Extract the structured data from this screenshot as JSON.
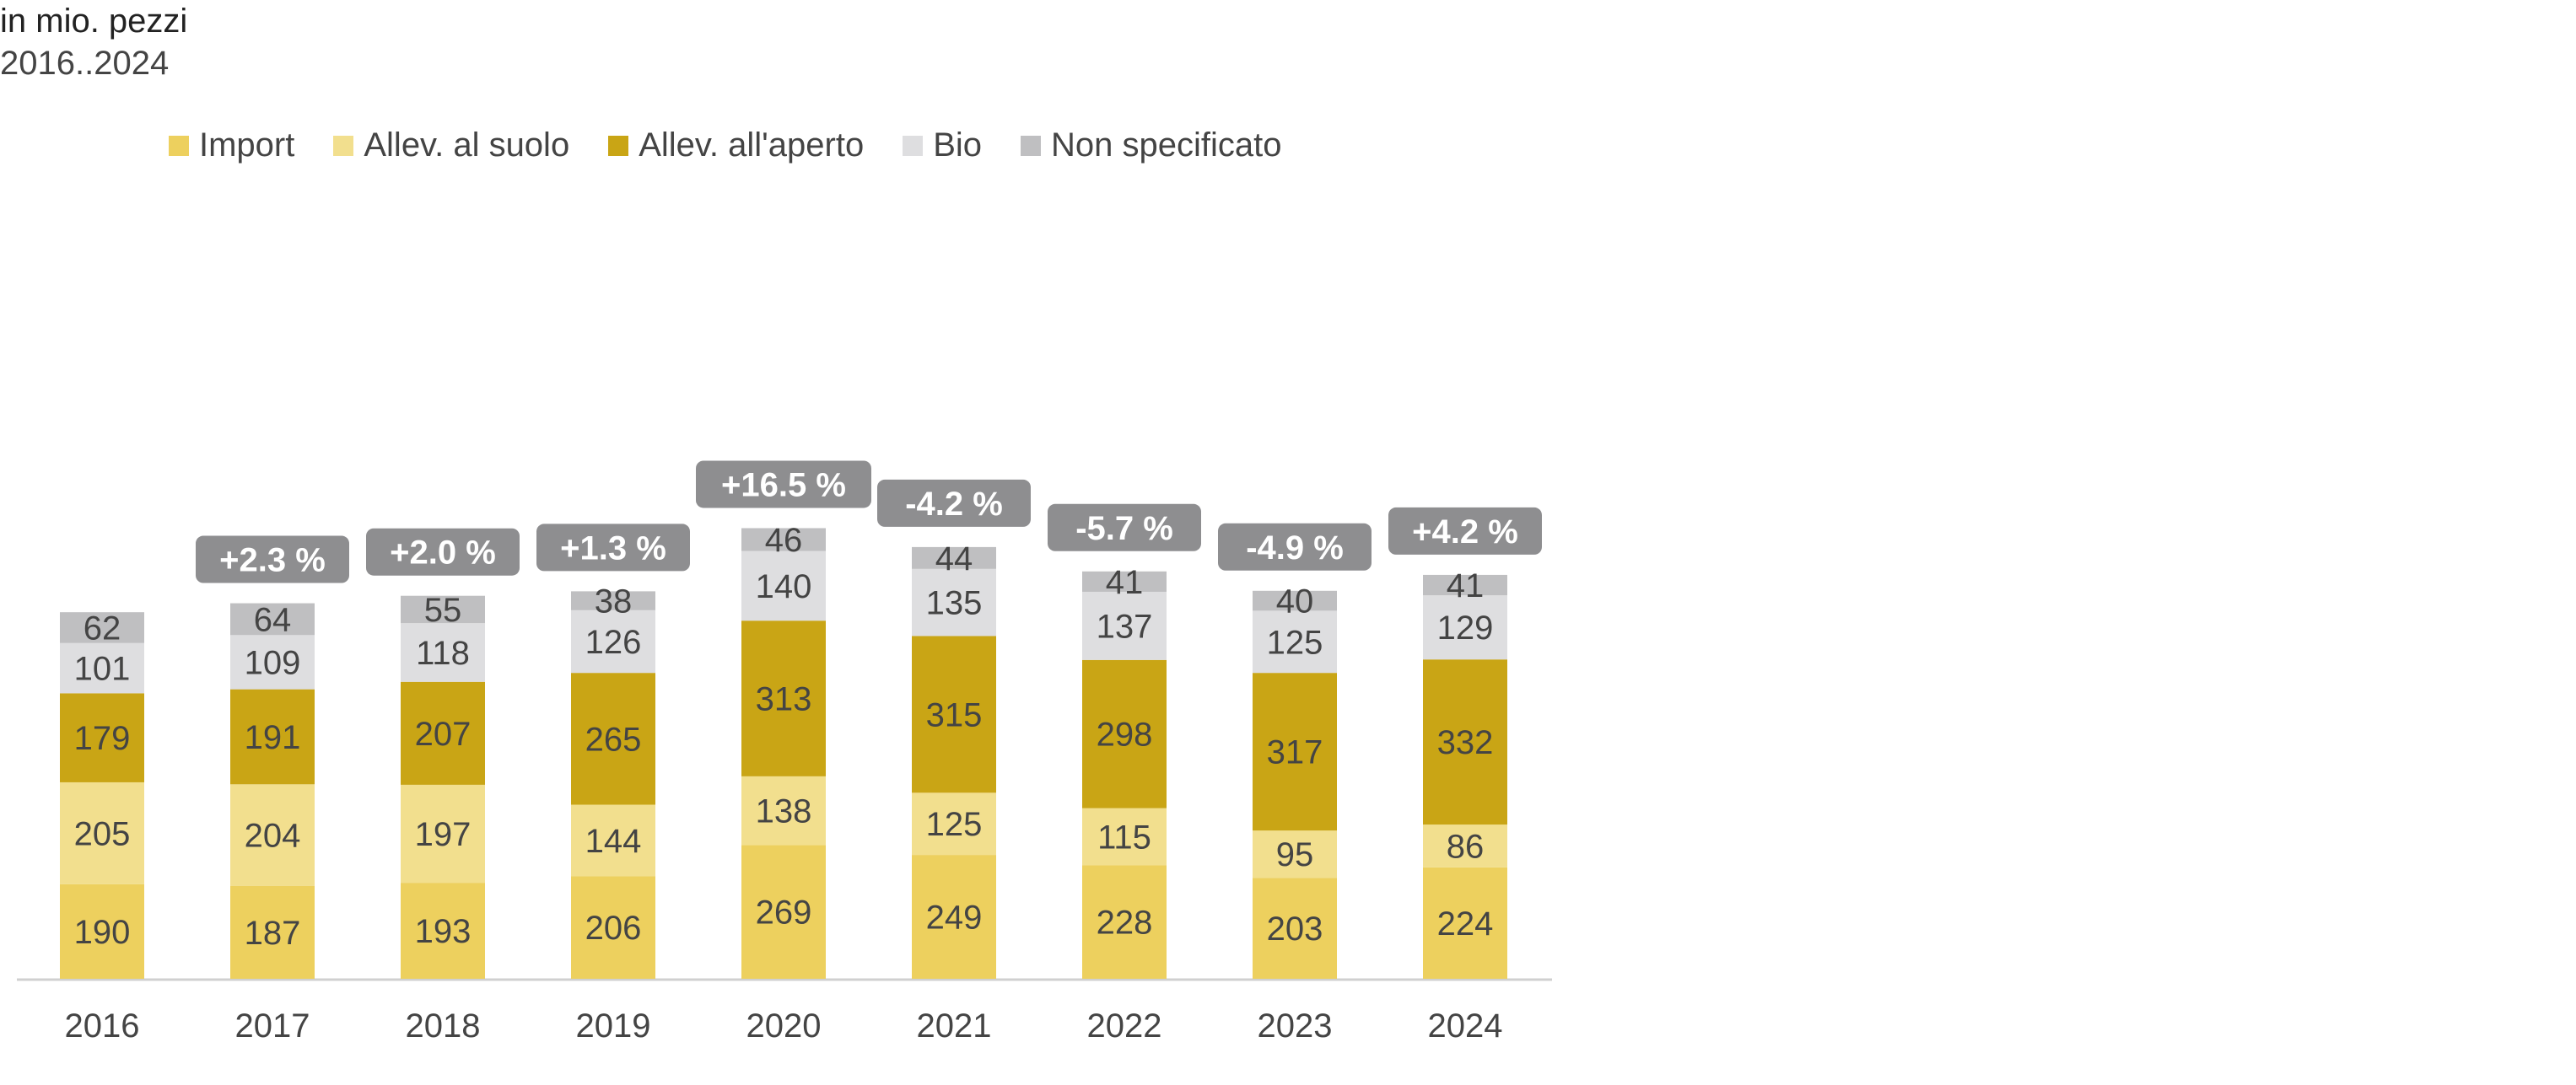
{
  "header": {
    "title": "in mio. pezzi",
    "subtitle": "2016..2024"
  },
  "chart_data": {
    "type": "bar",
    "stacked": true,
    "categories": [
      "2016",
      "2017",
      "2018",
      "2019",
      "2020",
      "2021",
      "2022",
      "2023",
      "2024"
    ],
    "series": [
      {
        "name": "Import",
        "color": "#EDD05E",
        "label_color": "#444444",
        "values": [
          190,
          187,
          193,
          206,
          269,
          249,
          228,
          203,
          224
        ]
      },
      {
        "name": "Allev. al suolo",
        "color": "#F2DF8E",
        "label_color": "#444444",
        "values": [
          205,
          204,
          197,
          144,
          138,
          125,
          115,
          95,
          86
        ]
      },
      {
        "name": "Allev. all'aperto",
        "color": "#C9A515",
        "label_color": "#444444",
        "values": [
          179,
          191,
          207,
          265,
          313,
          315,
          298,
          317,
          332
        ]
      },
      {
        "name": "Bio",
        "color": "#DEDEE0",
        "label_color": "#444444",
        "values": [
          101,
          109,
          118,
          126,
          140,
          135,
          137,
          125,
          129
        ]
      },
      {
        "name": "Non specificato",
        "color": "#BFBFC1",
        "label_color": "#444444",
        "values": [
          62,
          64,
          55,
          38,
          46,
          44,
          41,
          40,
          41
        ]
      }
    ],
    "change_labels": [
      "",
      "+2.3 %",
      "+2.0 %",
      "+1.3 %",
      "+16.5 %",
      "-4.2 %",
      "-5.7 %",
      "-4.9 %",
      "+4.2 %"
    ],
    "change_label_color": "#8E8E90",
    "ylim": [
      0,
      1000
    ],
    "grid": false,
    "legend_position": "top"
  }
}
